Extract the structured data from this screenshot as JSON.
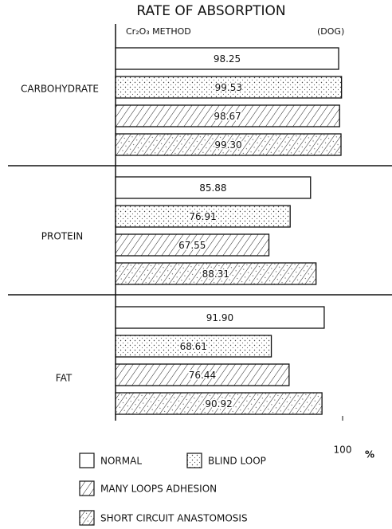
{
  "chart_data": {
    "type": "bar",
    "orientation": "horizontal",
    "title": "RATE OF ABSORPTION",
    "subtitle": "Cr₂O₃ METHOD",
    "annotation": "(DOG)",
    "categories": [
      "CARBOHYDRATE",
      "PROTEIN",
      "FAT"
    ],
    "series": [
      {
        "name": "NORMAL",
        "color": "#ffffff",
        "pattern": "none",
        "values": [
          98.25,
          85.88,
          91.9
        ],
        "value_labels": [
          "98.25",
          "85.88",
          "91.90"
        ]
      },
      {
        "name": "BLIND LOOP",
        "color": "#ffffff",
        "pattern": "dots",
        "values": [
          99.53,
          76.91,
          68.61
        ],
        "value_labels": [
          "99.53",
          "76.91",
          "68.61"
        ]
      },
      {
        "name": "MANY LOOPS ADHESION",
        "color": "#ffffff",
        "pattern": "hatch",
        "values": [
          98.67,
          67.55,
          76.44
        ],
        "value_labels": [
          "98.67",
          "67.55",
          "76.44"
        ]
      },
      {
        "name": "SHORT CIRCUIT ANASTOMOSIS",
        "color": "#ffffff",
        "pattern": "hatch-dots",
        "values": [
          99.3,
          88.31,
          90.92
        ],
        "value_labels": [
          "99.30",
          "88.31",
          "90.92"
        ]
      }
    ],
    "xlim": [
      0,
      100
    ],
    "xticks": [
      100
    ],
    "x_label": "%"
  }
}
